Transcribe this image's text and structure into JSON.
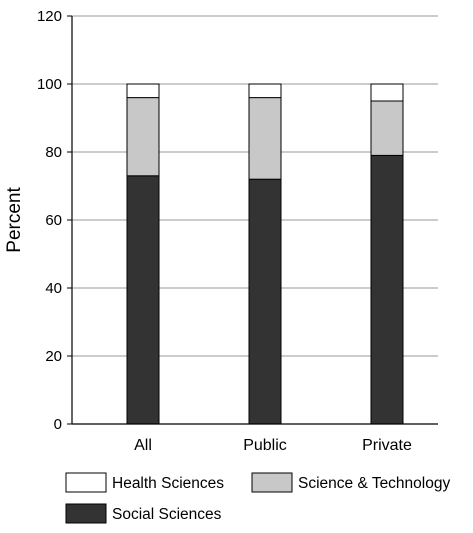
{
  "chart_data": {
    "type": "bar",
    "stacked": true,
    "percent": true,
    "categories": [
      "All",
      "Public",
      "Private"
    ],
    "series": [
      {
        "name": "Social Sciences",
        "values": [
          73,
          72,
          79
        ],
        "color": "#333333"
      },
      {
        "name": "Science & Technology",
        "values": [
          23,
          24,
          16
        ],
        "color": "#c8c8c8"
      },
      {
        "name": "Health Sciences",
        "values": [
          4,
          4,
          5
        ],
        "color": "#ffffff"
      }
    ],
    "ylabel": "Percent",
    "xlabel": "",
    "ylim": [
      0,
      120
    ],
    "yticks": [
      0,
      20,
      40,
      60,
      80,
      100,
      120
    ],
    "grid": true,
    "legend_position": "bottom"
  }
}
